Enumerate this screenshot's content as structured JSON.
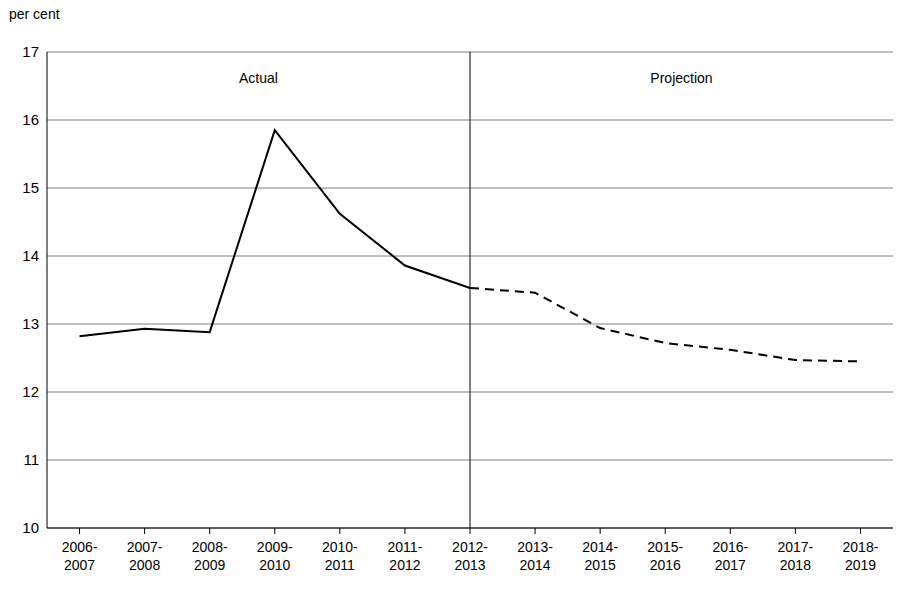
{
  "chart_data": {
    "type": "line",
    "y_label": "per cent",
    "categories": [
      "2006-2007",
      "2007-2008",
      "2008-2009",
      "2009-2010",
      "2010-2011",
      "2011-2012",
      "2012-2013",
      "2013-2014",
      "2014-2015",
      "2015-2016",
      "2016-2017",
      "2017-2018",
      "2018-2019"
    ],
    "series": [
      {
        "name": "Actual",
        "color": "#000000",
        "line_style": "solid",
        "values": [
          12.82,
          12.93,
          12.88,
          15.85,
          14.62,
          13.86,
          13.53,
          null,
          null,
          null,
          null,
          null,
          null
        ]
      },
      {
        "name": "Projection",
        "color": "#000000",
        "line_style": "dashed",
        "values": [
          null,
          null,
          null,
          null,
          null,
          null,
          13.53,
          13.46,
          12.94,
          12.72,
          12.62,
          12.47,
          12.45
        ]
      }
    ],
    "ylim": [
      10,
      17
    ],
    "yticks": [
      10,
      11,
      12,
      13,
      14,
      15,
      16,
      17
    ],
    "grid": true
  }
}
